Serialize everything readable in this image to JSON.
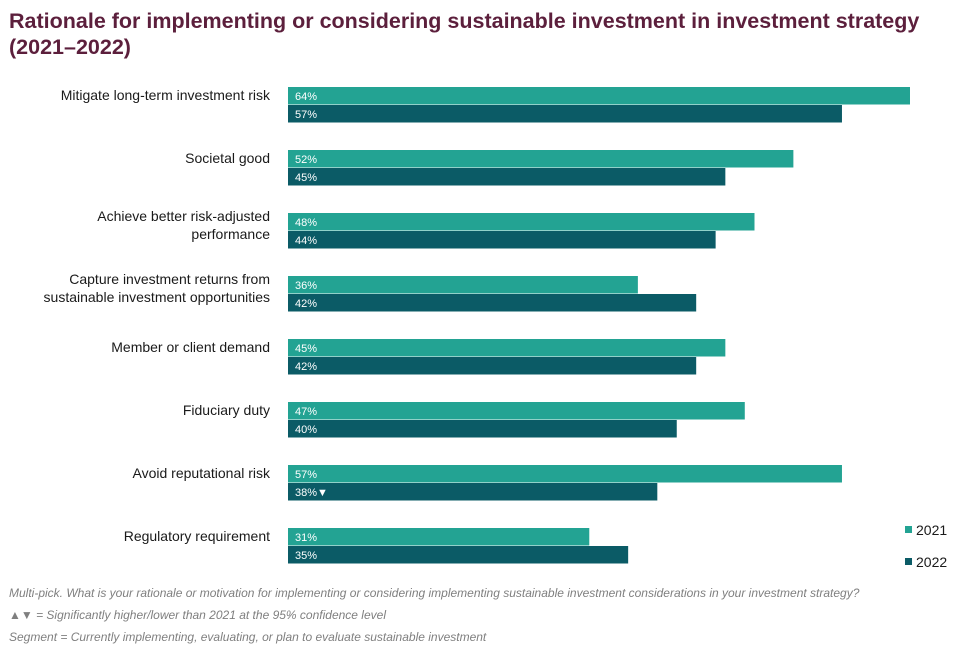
{
  "colors": {
    "series_2021": "#23a393",
    "series_2022": "#0b5b66",
    "title": "#5c1f3c"
  },
  "chart_data": {
    "type": "bar",
    "orientation": "horizontal",
    "title": "Rationale for implementing or considering sustainable investment in investment strategy (2021–2022)",
    "categories": [
      [
        "Mitigate long-term investment risk"
      ],
      [
        "Societal good"
      ],
      [
        "Achieve better risk-adjusted",
        "performance"
      ],
      [
        "Capture investment returns from",
        "sustainable investment opportunities"
      ],
      [
        "Member or client demand"
      ],
      [
        "Fiduciary duty"
      ],
      [
        "Avoid reputational risk"
      ],
      [
        "Regulatory requirement"
      ]
    ],
    "series": [
      {
        "name": "2021",
        "values": [
          64,
          52,
          48,
          36,
          45,
          47,
          57,
          31
        ],
        "labels": [
          "64%",
          "52%",
          "48%",
          "36%",
          "45%",
          "47%",
          "57%",
          "31%"
        ]
      },
      {
        "name": "2022",
        "values": [
          57,
          45,
          44,
          42,
          42,
          40,
          38,
          35
        ],
        "labels": [
          "57%",
          "45%",
          "44%",
          "42%",
          "42%",
          "40%",
          "38%▼",
          "35%"
        ]
      }
    ],
    "xlim": [
      0,
      64
    ],
    "legend_position": "bottom-right",
    "grid": false
  },
  "notes": {
    "question": "Multi-pick. What is your rationale or motivation for implementing or considering implementing sustainable investment considerations in your investment strategy?",
    "significance": "▲▼ = Significantly higher/lower than 2021 at the 95% confidence level",
    "segment": "Segment  = Currently implementing, evaluating, or plan to evaluate sustainable investment"
  }
}
